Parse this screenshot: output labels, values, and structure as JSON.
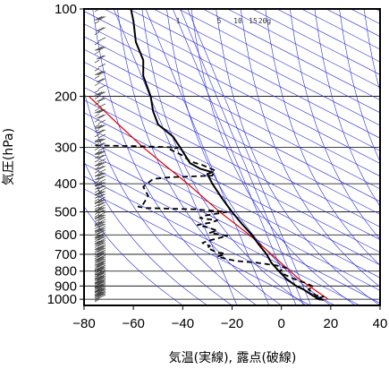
{
  "chart_data": {
    "type": "line",
    "title": "",
    "xlabel": "気温(実線), 露点(破線)",
    "ylabel": "気圧(hPa)",
    "xlim": [
      -80,
      40
    ],
    "ylim_hpa": [
      1050,
      100
    ],
    "y_scale": "log",
    "x_ticks": [
      "−80",
      "−60",
      "−40",
      "−20",
      "0",
      "20",
      "40"
    ],
    "y_ticks": [
      {
        "p": 100,
        "label": "100"
      },
      {
        "p": 200,
        "label": "200"
      },
      {
        "p": 300,
        "label": "300"
      },
      {
        "p": 400,
        "label": "400"
      },
      {
        "p": 500,
        "label": "500"
      },
      {
        "p": 600,
        "label": "600"
      },
      {
        "p": 700,
        "label": "700"
      },
      {
        "p": 800,
        "label": "800"
      },
      {
        "p": 900,
        "label": "900"
      },
      {
        "p": 1000,
        "label": "1000"
      }
    ],
    "mixing_ratio_labels": [
      "1",
      "5",
      "10",
      "15",
      "20g"
    ],
    "colors": {
      "temperature": "#000000",
      "dewpoint": "#000000",
      "parcel": "#e00000",
      "isopleths": "#2a2ae0",
      "grid": "#000000"
    },
    "series": [
      {
        "name": "",
        "style": "solid",
        "points": [
          [
            1007,
            17
          ],
          [
            1000,
            16
          ],
          [
            975,
            13
          ],
          [
            950,
            11
          ],
          [
            925,
            9
          ],
          [
            900,
            6
          ],
          [
            850,
            2
          ],
          [
            800,
            -1
          ],
          [
            750,
            -4
          ],
          [
            700,
            -6
          ],
          [
            650,
            -9
          ],
          [
            600,
            -12
          ],
          [
            550,
            -16
          ],
          [
            500,
            -20
          ],
          [
            450,
            -24
          ],
          [
            400,
            -28
          ],
          [
            370,
            -30
          ],
          [
            365,
            -28
          ],
          [
            355,
            -33
          ],
          [
            340,
            -37
          ],
          [
            300,
            -41
          ],
          [
            275,
            -44
          ],
          [
            250,
            -50
          ],
          [
            225,
            -52
          ],
          [
            200,
            -53
          ],
          [
            170,
            -56
          ],
          [
            150,
            -56
          ],
          [
            130,
            -59
          ],
          [
            110,
            -60
          ],
          [
            100,
            -61
          ]
        ]
      },
      {
        "name": "",
        "style": "dashed",
        "points": [
          [
            1005,
            16
          ],
          [
            995,
            14
          ],
          [
            980,
            17
          ],
          [
            970,
            14
          ],
          [
            955,
            13
          ],
          [
            940,
            12
          ],
          [
            925,
            11
          ],
          [
            905,
            13
          ],
          [
            880,
            10
          ],
          [
            850,
            5
          ],
          [
            820,
            1
          ],
          [
            800,
            -1
          ],
          [
            780,
            2
          ],
          [
            765,
            -2
          ],
          [
            748,
            -10
          ],
          [
            738,
            -18
          ],
          [
            728,
            -22
          ],
          [
            712,
            -26
          ],
          [
            705,
            -24
          ],
          [
            695,
            -23
          ],
          [
            690,
            -26
          ],
          [
            678,
            -28
          ],
          [
            665,
            -30
          ],
          [
            655,
            -29
          ],
          [
            640,
            -32
          ],
          [
            630,
            -30
          ],
          [
            605,
            -22
          ],
          [
            590,
            -29
          ],
          [
            580,
            -26
          ],
          [
            565,
            -30
          ],
          [
            555,
            -34
          ],
          [
            545,
            -29
          ],
          [
            535,
            -26
          ],
          [
            525,
            -33
          ],
          [
            515,
            -31
          ],
          [
            500,
            -22
          ],
          [
            490,
            -35
          ],
          [
            485,
            -55
          ],
          [
            480,
            -58
          ],
          [
            470,
            -56
          ],
          [
            440,
            -54
          ],
          [
            410,
            -56
          ],
          [
            385,
            -52
          ],
          [
            380,
            -45
          ],
          [
            375,
            -28
          ],
          [
            360,
            -27
          ],
          [
            345,
            -32
          ],
          [
            335,
            -37
          ],
          [
            320,
            -40
          ],
          [
            305,
            -45
          ],
          [
            300,
            -42
          ],
          [
            297,
            -58
          ],
          [
            295,
            -77
          ]
        ]
      },
      {
        "name": "",
        "style": "solid",
        "points": [
          [
            1000,
            19
          ],
          [
            850,
            7
          ],
          [
            700,
            -4
          ],
          [
            600,
            -13
          ],
          [
            500,
            -25
          ],
          [
            400,
            -38
          ],
          [
            300,
            -56
          ],
          [
            250,
            -66
          ],
          [
            200,
            -78
          ]
        ]
      }
    ],
    "wind_barbs_hpa": [
      1000,
      990,
      980,
      970,
      960,
      950,
      940,
      930,
      920,
      910,
      900,
      890,
      880,
      870,
      860,
      850,
      840,
      830,
      820,
      810,
      800,
      790,
      780,
      770,
      760,
      750,
      740,
      730,
      720,
      710,
      700,
      690,
      680,
      670,
      660,
      650,
      640,
      630,
      620,
      610,
      600,
      590,
      580,
      570,
      560,
      550,
      540,
      530,
      520,
      510,
      500,
      490,
      480,
      470,
      460,
      450,
      440,
      430,
      420,
      410,
      400,
      390,
      380,
      370,
      360,
      350,
      340,
      330,
      320,
      310,
      300,
      290,
      280,
      270,
      260,
      250,
      240,
      230,
      220,
      210,
      200,
      190,
      180,
      170,
      160,
      150,
      140,
      130,
      120,
      110,
      100
    ]
  }
}
